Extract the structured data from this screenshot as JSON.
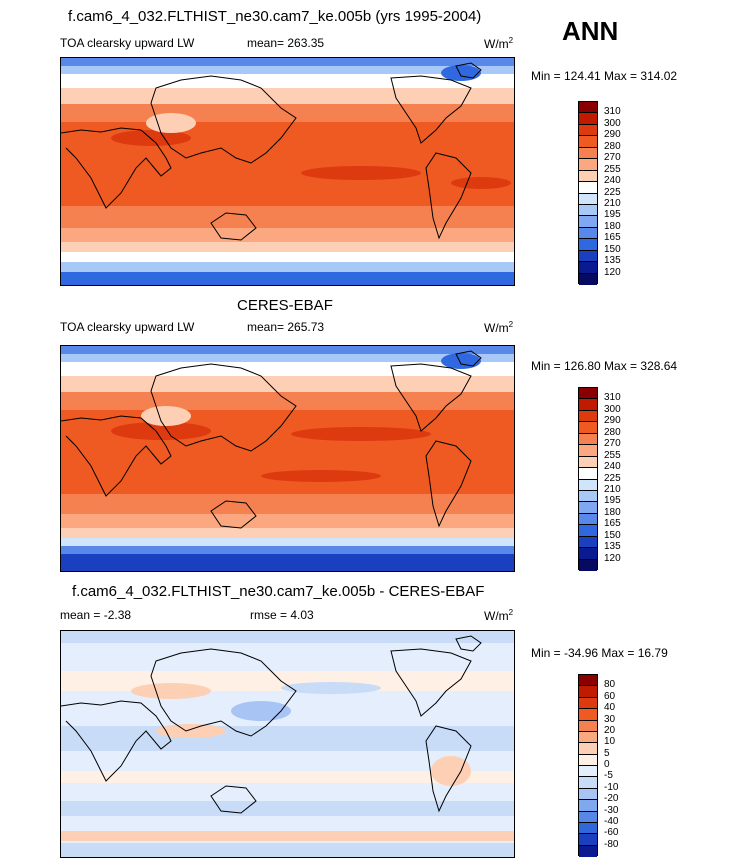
{
  "season": "ANN",
  "units_base": "W/m",
  "units_exp": "2",
  "panels": [
    {
      "title": "f.cam6_4_032.FLTHIST_ne30.cam7_ke.005b (yrs 1995-2004)",
      "left_label": "TOA clearsky upward LW",
      "center_label": "mean= 263.35",
      "minmax": "Min = 124.41 Max = 314.02"
    },
    {
      "title": "CERES-EBAF",
      "left_label": "TOA clearsky upward LW",
      "center_label": "mean= 265.73",
      "minmax": "Min = 126.80 Max = 328.64"
    },
    {
      "title": "f.cam6_4_032.FLTHIST_ne30.cam7_ke.005b - CERES-EBAF",
      "left_label": "mean =  -2.38",
      "center_label": "rmse =   4.03",
      "minmax": "Min = -34.96 Max =  16.79"
    }
  ],
  "colorbars": {
    "absolute": {
      "levels": [
        "310",
        "300",
        "290",
        "280",
        "270",
        "255",
        "240",
        "225",
        "210",
        "195",
        "180",
        "165",
        "150",
        "135",
        "120"
      ],
      "colors": [
        "#8a0000",
        "#c01a00",
        "#dd3a10",
        "#ee5a22",
        "#f58050",
        "#fba880",
        "#fdd0b5",
        "#ffffff",
        "#d0e4fc",
        "#a8c8f8",
        "#80a8f2",
        "#5888ea",
        "#3068e0",
        "#1a40c0",
        "#0a1a90",
        "#060a60"
      ]
    },
    "difference": {
      "levels": [
        "80",
        "60",
        "40",
        "30",
        "20",
        "10",
        "5",
        "0",
        "-5",
        "-10",
        "-20",
        "-30",
        "-40",
        "-60",
        "-80"
      ],
      "colors": [
        "#8a0000",
        "#c01a00",
        "#dd3a10",
        "#ee5a22",
        "#f58050",
        "#fba880",
        "#fdd0b5",
        "#fff0e6",
        "#e4eefc",
        "#c8dcf8",
        "#a8c4f4",
        "#80a8ee",
        "#5888e6",
        "#3068dc",
        "#1a40c0",
        "#0a1a90"
      ]
    }
  },
  "chart_data": [
    {
      "type": "heatmap",
      "title": "f.cam6_4_032.FLTHIST_ne30.cam7_ke.005b (yrs 1995-2004)",
      "variable": "TOA clearsky upward LW",
      "units": "W/m2",
      "mean": 263.35,
      "min": 124.41,
      "max": 314.02,
      "contour_levels": [
        120,
        135,
        150,
        165,
        180,
        195,
        210,
        225,
        240,
        255,
        270,
        280,
        290,
        300,
        310
      ]
    },
    {
      "type": "heatmap",
      "title": "CERES-EBAF",
      "variable": "TOA clearsky upward LW",
      "units": "W/m2",
      "mean": 265.73,
      "min": 126.8,
      "max": 328.64,
      "contour_levels": [
        120,
        135,
        150,
        165,
        180,
        195,
        210,
        225,
        240,
        255,
        270,
        280,
        290,
        300,
        310
      ]
    },
    {
      "type": "heatmap",
      "title": "f.cam6_4_032.FLTHIST_ne30.cam7_ke.005b - CERES-EBAF",
      "units": "W/m2",
      "mean": -2.38,
      "rmse": 4.03,
      "min": -34.96,
      "max": 16.79,
      "contour_levels": [
        -80,
        -60,
        -40,
        -30,
        -20,
        -10,
        -5,
        0,
        5,
        10,
        20,
        30,
        40,
        60,
        80
      ]
    }
  ]
}
